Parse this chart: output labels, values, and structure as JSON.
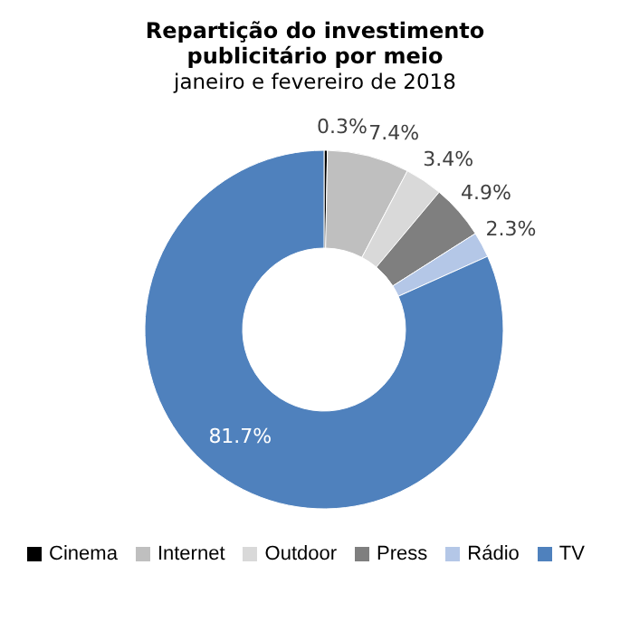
{
  "chart_data": {
    "type": "donut",
    "title": "Repartição do investimento publicitário por meio",
    "subtitle": "janeiro e fevereiro de 2018",
    "categories": [
      "Cinema",
      "Internet",
      "Outdoor",
      "Press",
      "Rádio",
      "TV"
    ],
    "values": [
      0.3,
      7.4,
      3.4,
      4.9,
      2.3,
      81.7
    ],
    "value_labels": [
      "0.3%",
      "7.4%",
      "3.4%",
      "4.9%",
      "2.3%",
      "81.7%"
    ],
    "colors": [
      "#000000",
      "#bfbfbf",
      "#d9d9d9",
      "#7f7f7f",
      "#b4c7e7",
      "#4f81bd"
    ],
    "legend": "bottom"
  }
}
